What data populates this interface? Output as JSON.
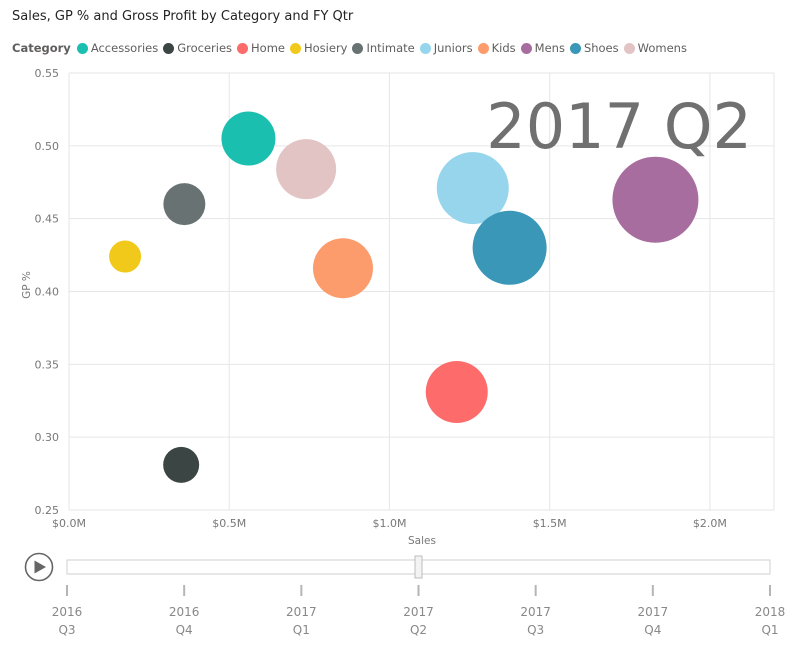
{
  "chart_data": {
    "type": "scatter",
    "title": "Sales, GP % and Gross Profit by Category and FY Qtr",
    "xlabel": "Sales",
    "ylabel": "GP %",
    "xlim": [
      0,
      2200000
    ],
    "ylim": [
      0.25,
      0.55
    ],
    "x_ticks": [
      0,
      500000,
      1000000,
      1500000,
      2000000
    ],
    "x_tick_labels": [
      "$0.0M",
      "$0.5M",
      "$1.0M",
      "$1.5M",
      "$2.0M"
    ],
    "y_ticks": [
      0.25,
      0.3,
      0.35,
      0.4,
      0.45,
      0.5,
      0.55
    ],
    "y_tick_labels": [
      "0.25",
      "0.30",
      "0.35",
      "0.40",
      "0.45",
      "0.50",
      "0.55"
    ],
    "grid": true,
    "legend_title": "Category",
    "legend_position": "top",
    "size_field": "Gross Profit",
    "current_period": "2017 Q2",
    "points": [
      {
        "category": "Accessories",
        "x": 560000,
        "y": 0.505,
        "size": 27,
        "color": "#1bbfaf"
      },
      {
        "category": "Groceries",
        "x": 350000,
        "y": 0.281,
        "size": 18,
        "color": "#3b4543"
      },
      {
        "category": "Home",
        "x": 1210000,
        "y": 0.331,
        "size": 31,
        "color": "#fd6b6b"
      },
      {
        "category": "Hosiery",
        "x": 175000,
        "y": 0.424,
        "size": 16,
        "color": "#f1c91a"
      },
      {
        "category": "Intimate",
        "x": 360000,
        "y": 0.46,
        "size": 21,
        "color": "#687272"
      },
      {
        "category": "Juniors",
        "x": 1260000,
        "y": 0.471,
        "size": 36,
        "color": "#96d5ec"
      },
      {
        "category": "Kids",
        "x": 855000,
        "y": 0.416,
        "size": 30,
        "color": "#fc9c6c"
      },
      {
        "category": "Mens",
        "x": 1830000,
        "y": 0.463,
        "size": 43,
        "color": "#a86d9f"
      },
      {
        "category": "Shoes",
        "x": 1375000,
        "y": 0.43,
        "size": 37,
        "color": "#3a97b7"
      },
      {
        "category": "Womens",
        "x": 740000,
        "y": 0.484,
        "size": 30,
        "color": "#e2c4c5"
      }
    ]
  },
  "play_axis": {
    "labels": [
      {
        "year": "2016",
        "qtr": "Q3"
      },
      {
        "year": "2016",
        "qtr": "Q4"
      },
      {
        "year": "2017",
        "qtr": "Q1"
      },
      {
        "year": "2017",
        "qtr": "Q2"
      },
      {
        "year": "2017",
        "qtr": "Q3"
      },
      {
        "year": "2017",
        "qtr": "Q4"
      },
      {
        "year": "2018",
        "qtr": "Q1"
      }
    ],
    "current_index": 3
  },
  "colors": {
    "grid": "#e6e6e6",
    "track": "#cccccc",
    "play_button": "#666666"
  }
}
